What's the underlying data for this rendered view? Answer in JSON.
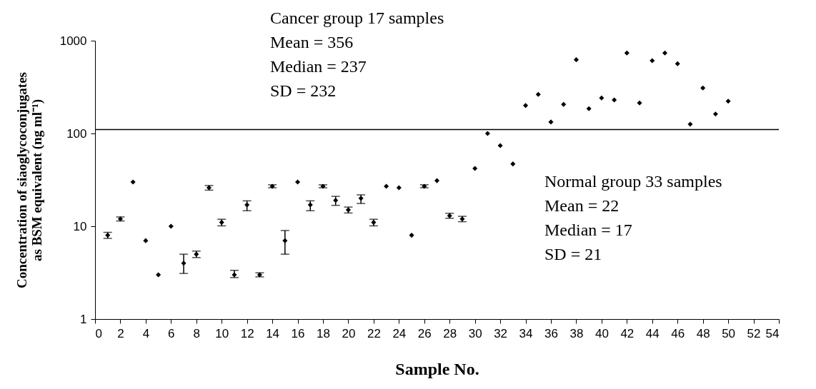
{
  "chart_data": {
    "type": "scatter",
    "xlabel": "Sample No.",
    "ylabel": "Concentration of siaoglycoconjugates as BSM equivalent (ng ml⁻¹)",
    "x": [
      1,
      2,
      3,
      4,
      5,
      6,
      7,
      8,
      9,
      10,
      11,
      12,
      13,
      14,
      15,
      16,
      17,
      18,
      19,
      20,
      21,
      22,
      23,
      24,
      25,
      26,
      27,
      28,
      29,
      30,
      31,
      32,
      33,
      34,
      35,
      36,
      37,
      38,
      39,
      40,
      41,
      42,
      43,
      44,
      45,
      46,
      47,
      48,
      49,
      50
    ],
    "series": [
      {
        "color": "#000000",
        "values": [
          8,
          12,
          30,
          7,
          3,
          10,
          4,
          5,
          26,
          11,
          3,
          17,
          3,
          27,
          7,
          30,
          17,
          27,
          19,
          15,
          20,
          11,
          27,
          26,
          8,
          27,
          31,
          13,
          12,
          42,
          100,
          74,
          47,
          200,
          264,
          133,
          206,
          624,
          185,
          241,
          230,
          736,
          213,
          609,
          736,
          565,
          126,
          309,
          162,
          223
        ],
        "errors": [
          [
            7.4,
            8.6
          ],
          [
            11.4,
            12.6
          ],
          null,
          null,
          null,
          null,
          [
            3.1,
            5
          ],
          [
            4.6,
            5.4
          ],
          [
            24.5,
            27.5
          ],
          [
            10.1,
            11.9
          ],
          [
            2.8,
            3.35
          ],
          [
            14.7,
            18.8
          ],
          [
            2.85,
            3.15
          ],
          [
            26,
            28
          ],
          [
            5,
            9
          ],
          null,
          [
            14.7,
            18.8
          ],
          [
            26,
            28
          ],
          [
            16.8,
            21
          ],
          [
            13.9,
            16.1
          ],
          [
            17.6,
            21.8
          ],
          [
            10.1,
            11.9
          ],
          null,
          null,
          null,
          [
            26,
            28
          ],
          null,
          [
            12.2,
            13.8
          ],
          [
            11.2,
            12.8
          ],
          null,
          null,
          null,
          null,
          null,
          null,
          null,
          null,
          null,
          null,
          null,
          null,
          null,
          null,
          null,
          null,
          null,
          null,
          null,
          null,
          null
        ]
      }
    ],
    "xlim": [
      0,
      54
    ],
    "xticks": [
      0,
      2,
      4,
      6,
      8,
      10,
      12,
      14,
      16,
      18,
      20,
      22,
      24,
      26,
      28,
      30,
      32,
      34,
      36,
      38,
      40,
      42,
      44,
      46,
      48,
      50,
      52,
      54
    ],
    "ylim": [
      1,
      1000
    ],
    "yticks": [
      1,
      10,
      100,
      1000
    ],
    "log": true,
    "grid": false,
    "marker": "diamond",
    "ref_lines": [
      {
        "axis": "y",
        "value": 110
      }
    ],
    "annotations": [
      "Cancer group  17 samples",
      "Mean = 356",
      "Median = 237",
      "SD = 232",
      "Normal group 33 samples",
      "Mean = 22",
      "Median = 17",
      "SD = 21"
    ]
  }
}
